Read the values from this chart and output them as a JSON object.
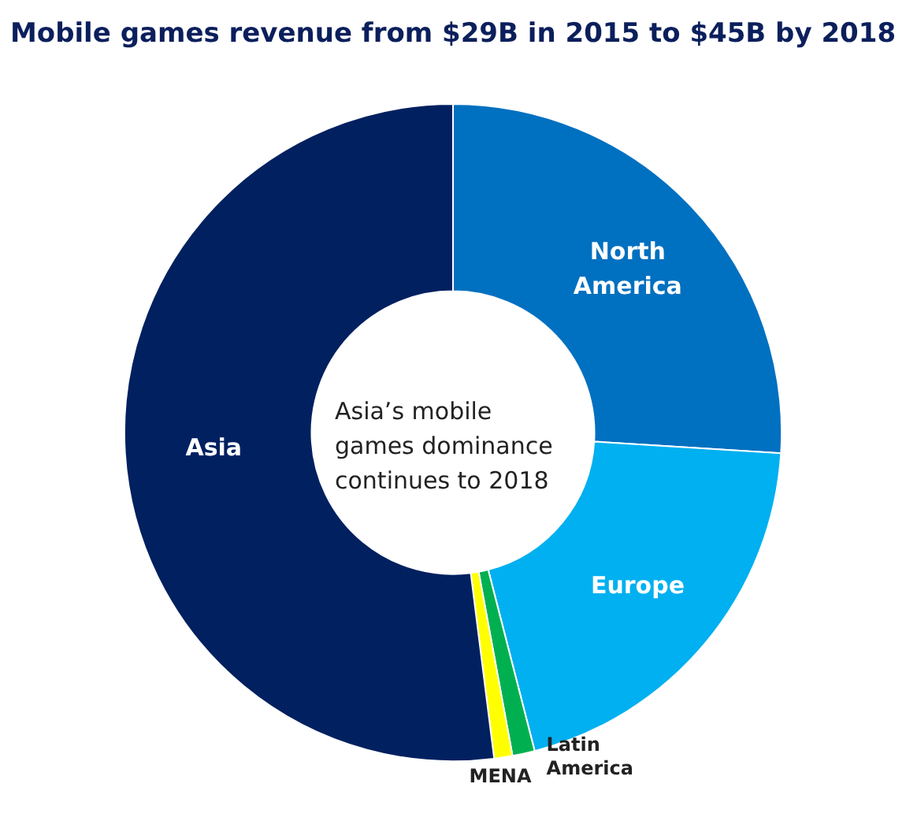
{
  "chart_data": {
    "type": "donut",
    "title": "Mobile games revenue from $29B in 2015 to $45B by 2018",
    "categories": [
      "North America",
      "Europe",
      "Latin America",
      "MENA",
      "Asia"
    ],
    "values": [
      26,
      20,
      1.1,
      0.9,
      52
    ],
    "colors": [
      "#0070c0",
      "#00b0f0",
      "#00b050",
      "#ffff00",
      "#002060"
    ],
    "annotations": [
      "Asia’s mobile games dominance continues to 2018"
    ]
  }
}
